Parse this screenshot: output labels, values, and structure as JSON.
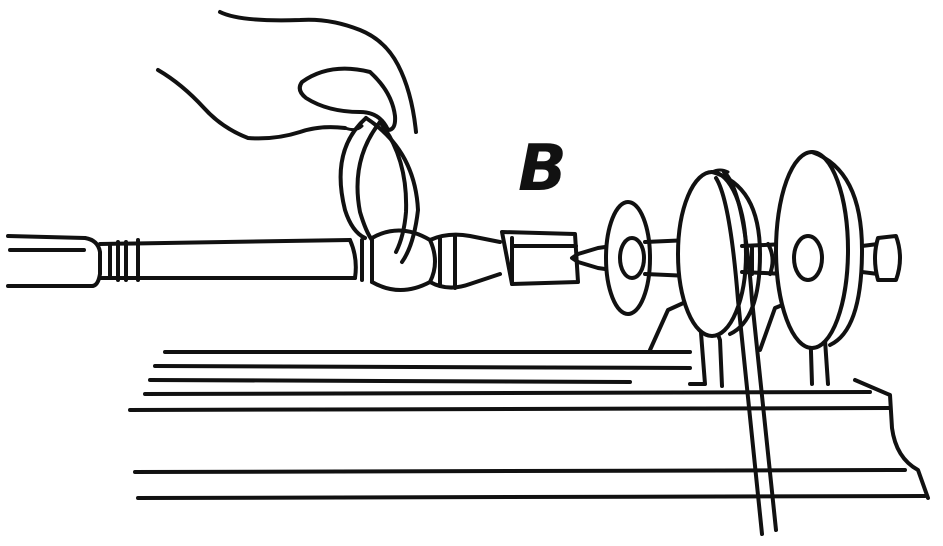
{
  "figure": {
    "label": "B",
    "ink_color": "#111111",
    "background": "#ffffff"
  }
}
